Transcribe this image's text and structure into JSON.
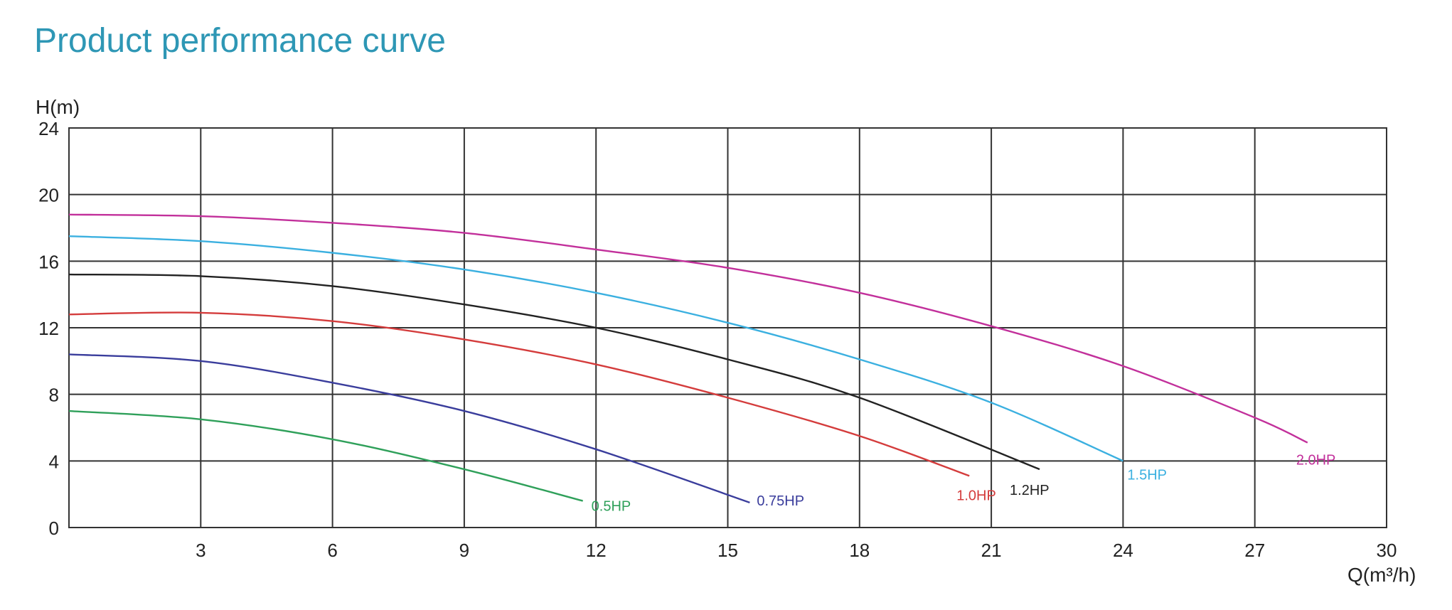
{
  "page": {
    "title": "Product performance curve"
  },
  "chart_data": {
    "type": "line",
    "title": "Product performance curve",
    "xlabel": "Q(m³/h)",
    "ylabel": "H(m)",
    "xlim": [
      0,
      30
    ],
    "ylim": [
      0,
      24
    ],
    "xticks": [
      3,
      6,
      9,
      12,
      15,
      18,
      21,
      24,
      27,
      30
    ],
    "yticks": [
      0,
      4,
      8,
      12,
      16,
      20,
      24
    ],
    "grid": true,
    "series": [
      {
        "name": "0.5HP",
        "color": "#2fa05a",
        "x": [
          0,
          3,
          6,
          9,
          11.7
        ],
        "y": [
          7.0,
          6.5,
          5.3,
          3.5,
          1.6
        ]
      },
      {
        "name": "0.75HP",
        "color": "#3a3d9c",
        "x": [
          0,
          3,
          6,
          9,
          12,
          15.5
        ],
        "y": [
          10.4,
          10.0,
          8.7,
          7.0,
          4.7,
          1.5
        ]
      },
      {
        "name": "1.0HP",
        "color": "#d43c3c",
        "x": [
          0,
          3,
          6,
          9,
          12,
          15,
          18,
          20.5
        ],
        "y": [
          12.8,
          12.9,
          12.4,
          11.3,
          9.8,
          7.8,
          5.5,
          3.1
        ]
      },
      {
        "name": "1.2HP",
        "color": "#222222",
        "x": [
          0,
          3,
          6,
          9,
          12,
          15,
          18,
          22.1
        ],
        "y": [
          15.2,
          15.1,
          14.5,
          13.4,
          12.0,
          10.1,
          7.8,
          3.5
        ]
      },
      {
        "name": "1.5HP",
        "color": "#3bb0e0",
        "x": [
          0,
          3,
          6,
          9,
          12,
          15,
          18,
          21,
          24
        ],
        "y": [
          17.5,
          17.2,
          16.5,
          15.5,
          14.1,
          12.3,
          10.1,
          7.5,
          4.0
        ]
      },
      {
        "name": "2.0HP",
        "color": "#c2309b",
        "x": [
          0,
          3,
          6,
          9,
          12,
          15,
          18,
          21,
          24,
          27,
          28.2
        ],
        "y": [
          18.8,
          18.7,
          18.3,
          17.7,
          16.7,
          15.6,
          14.1,
          12.1,
          9.7,
          6.6,
          5.1
        ]
      }
    ]
  }
}
